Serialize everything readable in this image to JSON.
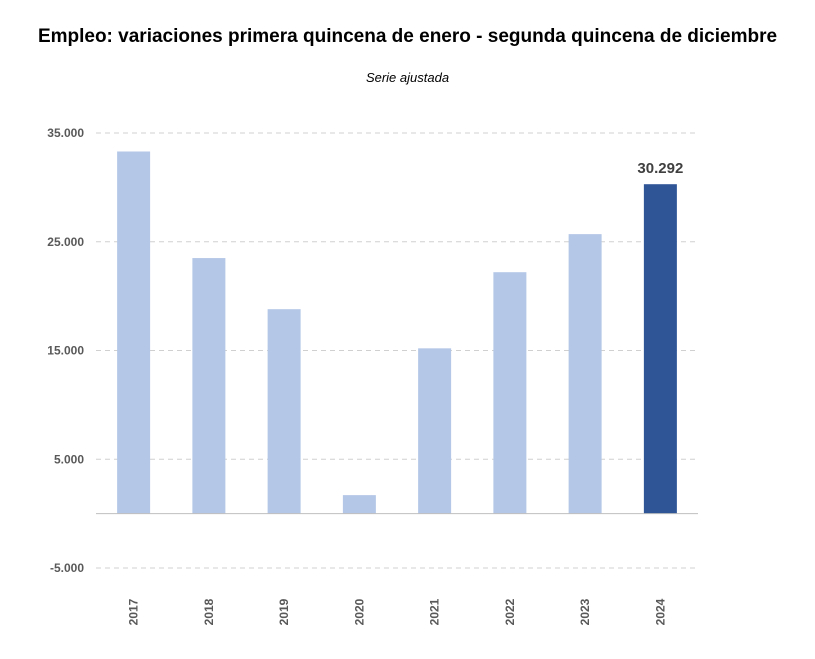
{
  "chart_data": {
    "type": "bar",
    "title": "Empleo: variaciones primera quincena de enero - segunda quincena de diciembre",
    "subtitle": "Serie ajustada",
    "categories": [
      "2017",
      "2018",
      "2019",
      "2020",
      "2021",
      "2022",
      "2023",
      "2024"
    ],
    "values": [
      33300,
      23500,
      18800,
      1700,
      15200,
      22200,
      25700,
      30292
    ],
    "data_labels": [
      null,
      null,
      null,
      null,
      null,
      null,
      null,
      "30.292"
    ],
    "ylim": [
      -5000,
      35000
    ],
    "yticks": [
      -5000,
      5000,
      15000,
      25000,
      35000
    ],
    "ytick_labels": [
      "-5.000",
      "5.000",
      "15.000",
      "25.000",
      "35.000"
    ],
    "grid": true,
    "colors": {
      "default_bar": "#b4c7e7",
      "highlight_bar": "#2f5597",
      "grid": "#d0d0d0",
      "axis": "#bfbfbf"
    },
    "highlight_index": 7
  }
}
